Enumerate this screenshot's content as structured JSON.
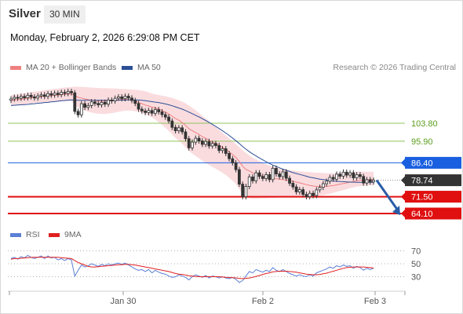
{
  "header": {
    "title": "Silver",
    "timeframe": "30 MIN",
    "datetime": "Monday, February 2, 2026 6:29:08 PM CET"
  },
  "legend": {
    "price": [
      {
        "label": "MA 20 + Bollinger Bands",
        "color": "#f08080"
      },
      {
        "label": "MA 50",
        "color": "#2c4f96"
      }
    ],
    "rsi": [
      {
        "label": "RSI",
        "color": "#5b7fd6"
      },
      {
        "label": "9MA",
        "color": "#e02020"
      }
    ]
  },
  "copyright": "Research © 2026 Trading Central",
  "chart_data": {
    "type": "line",
    "instrument": "Silver",
    "timeframe": "30 MIN",
    "x_tick_labels": [
      "Jan 30",
      "Feb 2",
      "Feb 3"
    ],
    "price_ylim": [
      60,
      110
    ],
    "levels": [
      {
        "value": 103.8,
        "label": "103.80",
        "kind": "resistance",
        "color": "#8fc45a"
      },
      {
        "value": 95.9,
        "label": "95.90",
        "kind": "resistance",
        "color": "#8fc45a"
      },
      {
        "value": 86.4,
        "label": "86.40",
        "kind": "pivot",
        "color": "#1a5fe0"
      },
      {
        "value": 78.74,
        "label": "78.74",
        "kind": "last_price",
        "color": "#333333"
      },
      {
        "value": 71.5,
        "label": "71.50",
        "kind": "support",
        "color": "#e01010"
      },
      {
        "value": 64.1,
        "label": "64.10",
        "kind": "support",
        "color": "#e01010"
      }
    ],
    "close": [
      114.5,
      115.2,
      114.8,
      115.6,
      115.0,
      116.1,
      115.4,
      114.9,
      115.8,
      116.3,
      115.6,
      116.8,
      116.2,
      117.0,
      116.4,
      117.4,
      116.9,
      117.8,
      117.2,
      109.0,
      107.5,
      112.4,
      110.8,
      111.6,
      113.2,
      112.5,
      111.9,
      113.0,
      112.2,
      114.0,
      113.6,
      114.8,
      115.4,
      114.6,
      115.7,
      114.9,
      113.8,
      112.5,
      110.0,
      109.2,
      108.5,
      109.4,
      108.2,
      109.8,
      108.8,
      107.6,
      106.5,
      104.8,
      102.0,
      100.5,
      101.8,
      100.0,
      97.0,
      93.0,
      95.5,
      97.2,
      96.0,
      94.5,
      95.8,
      93.8,
      94.9,
      94.0,
      91.8,
      92.6,
      90.5,
      88.2,
      86.4,
      83.4,
      77.0,
      71.5,
      76.0,
      80.2,
      78.5,
      82.0,
      80.4,
      79.5,
      81.2,
      79.0,
      84.0,
      81.5,
      80.3,
      82.4,
      79.6,
      77.4,
      75.8,
      73.6,
      74.6,
      72.5,
      71.5,
      73.0,
      72.0,
      74.5,
      75.6,
      77.2,
      78.3,
      80.0,
      79.2,
      81.4,
      80.5,
      82.3,
      81.0,
      82.0,
      79.8,
      81.2,
      80.4,
      77.5,
      79.0,
      78.0,
      78.74
    ],
    "ma20": [
      113.8,
      114.0,
      114.2,
      114.4,
      114.6,
      114.8,
      115.0,
      115.2,
      115.3,
      115.5,
      115.6,
      115.8,
      115.9,
      116.1,
      116.2,
      116.3,
      116.5,
      116.6,
      116.7,
      116.0,
      115.2,
      114.9,
      114.5,
      114.2,
      114.0,
      113.8,
      113.6,
      113.5,
      113.5,
      113.6,
      113.7,
      113.9,
      114.1,
      114.2,
      114.3,
      114.2,
      114.0,
      113.6,
      113.0,
      112.4,
      111.8,
      111.4,
      110.9,
      110.5,
      110.0,
      109.4,
      108.7,
      107.9,
      106.9,
      105.9,
      105.1,
      104.1,
      102.9,
      101.4,
      100.5,
      99.7,
      98.9,
      97.9,
      97.2,
      96.3,
      95.6,
      94.9,
      94.0,
      93.2,
      92.3,
      91.2,
      90.1,
      88.8,
      87.0,
      84.9,
      83.5,
      82.8,
      82.0,
      81.6,
      81.1,
      80.6,
      80.2,
      79.8,
      79.6,
      79.4,
      79.2,
      79.0,
      78.8,
      78.6,
      78.3,
      77.9,
      77.6,
      77.2,
      76.8,
      76.5,
      76.2,
      76.0,
      75.9,
      75.9,
      76.0,
      76.2,
      76.4,
      76.7,
      77.0,
      77.3,
      77.6,
      77.9,
      78.2,
      78.5,
      78.7,
      78.8,
      78.9,
      79.0,
      79.0
    ],
    "bb_upper": [
      116.2,
      116.4,
      116.6,
      116.8,
      117.0,
      117.2,
      117.5,
      117.7,
      117.9,
      118.1,
      118.3,
      118.5,
      118.7,
      118.9,
      119.1,
      119.3,
      119.5,
      119.6,
      119.8,
      119.9,
      119.9,
      119.8,
      119.7,
      119.6,
      119.5,
      119.4,
      119.3,
      119.2,
      119.2,
      119.2,
      119.1,
      119.1,
      119.0,
      118.9,
      118.8,
      118.7,
      118.6,
      118.5,
      118.4,
      118.2,
      117.8,
      117.4,
      116.9,
      116.5,
      116.2,
      115.9,
      115.6,
      115.3,
      114.9,
      114.4,
      113.9,
      113.3,
      112.6,
      111.6,
      110.6,
      109.5,
      108.4,
      107.1,
      105.9,
      104.6,
      103.4,
      102.1,
      100.9,
      99.6,
      98.4,
      97.1,
      95.9,
      94.6,
      93.3,
      92.0,
      90.8,
      89.6,
      88.6,
      87.9,
      87.1,
      86.4,
      85.8,
      85.2,
      84.7,
      84.2,
      83.9,
      83.6,
      83.4,
      83.2,
      83.0,
      82.8,
      82.7,
      82.5,
      82.4,
      82.3,
      82.2,
      82.1,
      82.0,
      81.9,
      81.8,
      81.8,
      81.8,
      81.9,
      82.0,
      82.1,
      82.2,
      82.3,
      82.4,
      82.5,
      82.5,
      82.5,
      82.5,
      82.5,
      82.5
    ],
    "bb_lower": [
      111.4,
      111.6,
      111.8,
      112.0,
      112.2,
      112.4,
      112.5,
      112.7,
      112.8,
      112.9,
      113.0,
      113.1,
      113.2,
      113.3,
      113.4,
      113.4,
      113.5,
      113.5,
      113.6,
      112.0,
      110.6,
      110.0,
      109.4,
      108.8,
      108.5,
      108.2,
      108.0,
      107.9,
      107.9,
      108.0,
      108.2,
      108.5,
      108.8,
      109.1,
      109.3,
      109.4,
      109.3,
      109.1,
      108.8,
      108.4,
      107.8,
      107.2,
      106.3,
      105.4,
      104.3,
      103.1,
      101.8,
      100.4,
      98.8,
      97.3,
      96.0,
      94.8,
      93.3,
      91.6,
      90.4,
      89.4,
      88.4,
      87.3,
      86.4,
      85.4,
      84.6,
      83.8,
      82.9,
      82.0,
      81.0,
      79.8,
      78.5,
      77.0,
      74.8,
      72.4,
      71.2,
      70.8,
      70.6,
      70.6,
      70.7,
      70.8,
      70.8,
      70.9,
      71.0,
      71.1,
      71.2,
      71.3,
      71.4,
      71.5,
      71.5,
      71.6,
      71.6,
      71.6,
      71.6,
      71.6,
      71.7,
      71.8,
      72.0,
      72.2,
      72.5,
      72.8,
      73.2,
      73.6,
      74.0,
      74.4,
      74.8,
      75.2,
      75.6,
      75.9,
      76.1,
      76.3,
      76.4,
      76.5,
      76.5
    ],
    "ma50": [
      111.6,
      111.7,
      111.8,
      111.9,
      112.0,
      112.1,
      112.3,
      112.4,
      112.6,
      112.7,
      112.9,
      113.0,
      113.2,
      113.3,
      113.5,
      113.7,
      113.8,
      114.0,
      114.1,
      114.0,
      113.9,
      113.9,
      113.9,
      113.9,
      113.9,
      113.9,
      113.9,
      113.9,
      113.9,
      113.9,
      113.9,
      113.9,
      114.0,
      114.0,
      114.0,
      114.1,
      114.1,
      114.1,
      114.0,
      113.9,
      113.7,
      113.5,
      113.3,
      113.1,
      112.9,
      112.6,
      112.3,
      111.9,
      111.5,
      111.0,
      110.5,
      110.0,
      109.4,
      108.7,
      108.0,
      107.3,
      106.6,
      105.8,
      105.0,
      104.2,
      103.3,
      102.4,
      101.5,
      100.5,
      99.5,
      98.4,
      97.3,
      96.1,
      94.9,
      93.5,
      92.4,
      91.3,
      90.3,
      89.4,
      88.5,
      87.7,
      86.9,
      86.1,
      85.4,
      84.8,
      84.2,
      83.6,
      83.1,
      82.6,
      82.1,
      81.7,
      81.3,
      80.9,
      80.5,
      80.1,
      79.8,
      79.5,
      79.2,
      79.0,
      78.8,
      78.6,
      78.4,
      78.3,
      78.2,
      78.1,
      78.0,
      77.9,
      77.9,
      77.8,
      77.8,
      77.8,
      77.8,
      77.8,
      77.8
    ],
    "projection": {
      "from": 78.74,
      "to": 64.1
    },
    "rsi": {
      "ylim": [
        10,
        80
      ],
      "levels": [
        70,
        50,
        30
      ],
      "rsi": [
        58,
        60,
        57,
        61,
        59,
        63,
        60,
        58,
        60,
        62,
        58,
        62,
        59,
        60,
        56,
        58,
        55,
        58,
        56,
        31,
        40,
        48,
        45,
        47,
        50,
        48,
        46,
        49,
        47,
        50,
        48,
        50,
        51,
        49,
        51,
        48,
        45,
        42,
        40,
        41,
        38,
        41,
        36,
        40,
        37,
        35,
        34,
        31,
        29,
        30,
        33,
        31,
        29,
        25,
        30,
        33,
        31,
        29,
        32,
        28,
        31,
        30,
        28,
        30,
        28,
        27,
        29,
        26,
        21,
        24,
        31,
        38,
        36,
        41,
        39,
        37,
        40,
        38,
        44,
        40,
        38,
        41,
        38,
        35,
        33,
        31,
        33,
        31,
        30,
        33,
        31,
        36,
        38,
        40,
        42,
        45,
        43,
        47,
        45,
        48,
        46,
        47,
        43,
        46,
        44,
        40,
        43,
        41,
        43
      ],
      "ma9": [
        57,
        58,
        58,
        58.5,
        59,
        59.5,
        59.8,
        60,
        60,
        60,
        60,
        60,
        60,
        60,
        60,
        59.5,
        59,
        58.5,
        58,
        55,
        52,
        50,
        48,
        46,
        45,
        45,
        45.5,
        46,
        46.5,
        47,
        47.5,
        48,
        48.5,
        48.5,
        49,
        49,
        48.5,
        48,
        47,
        46,
        45,
        44,
        43,
        42,
        41,
        40,
        39,
        38,
        36.5,
        35,
        34,
        33.5,
        32.5,
        31.5,
        31,
        30.5,
        30,
        30,
        30,
        30,
        30,
        30,
        30,
        29.5,
        29,
        28.8,
        28.5,
        28.2,
        27.5,
        27,
        27.5,
        28,
        29,
        30.5,
        32,
        33.5,
        35,
        36,
        37.5,
        38,
        38.5,
        38.5,
        38.5,
        38,
        37.5,
        37,
        36,
        35,
        34,
        33.5,
        33,
        33,
        33.5,
        34.5,
        35.5,
        37,
        38.5,
        40,
        41.5,
        43,
        44,
        44.5,
        45,
        45,
        45,
        45,
        44.5,
        44,
        43.5
      ]
    }
  }
}
